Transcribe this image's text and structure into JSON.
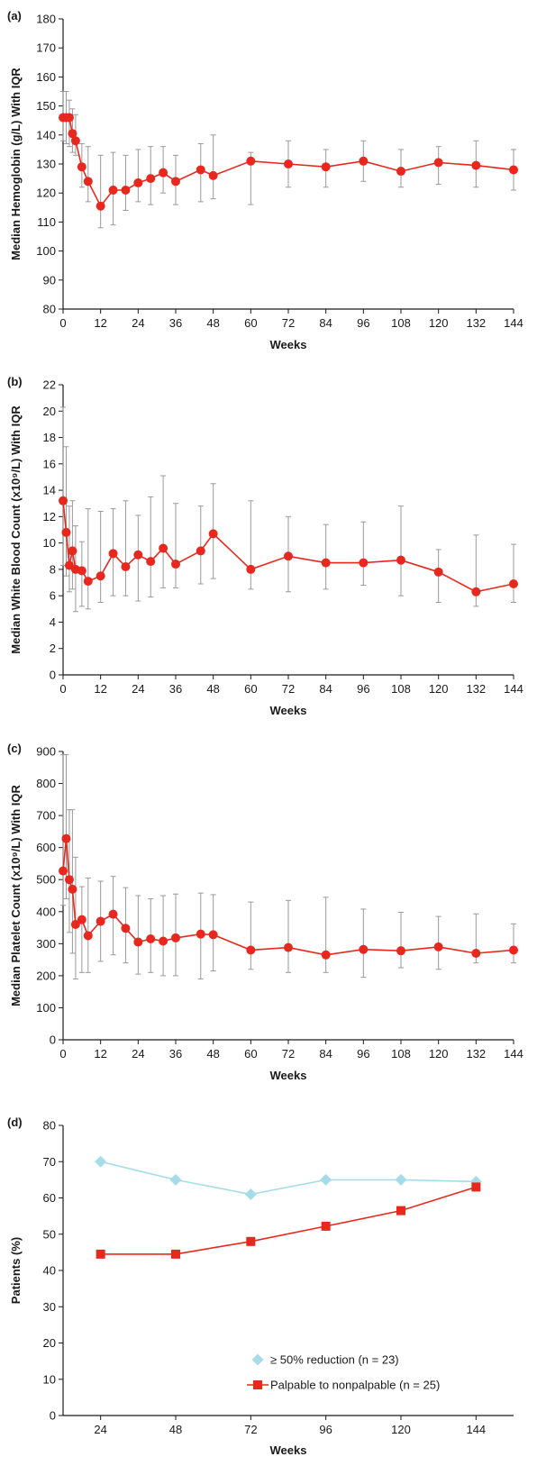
{
  "chart_data": [
    {
      "type": "line",
      "panel": "(a)",
      "title": "",
      "xlabel": "Weeks",
      "ylabel": "Median Hemoglobin (g/L) With IQR",
      "xlim": [
        0,
        144
      ],
      "ylim": [
        80,
        180
      ],
      "xticks": [
        0,
        12,
        24,
        36,
        48,
        60,
        72,
        84,
        96,
        108,
        120,
        132,
        144
      ],
      "yticks": [
        80,
        90,
        100,
        110,
        120,
        130,
        140,
        150,
        160,
        170,
        180
      ],
      "error_bars": "IQR",
      "grid": false,
      "color": "#e8281e",
      "errorbar_color": "#9a9a9a",
      "series": [
        {
          "x": [
            0,
            1,
            2,
            3,
            4,
            6,
            8,
            12,
            16,
            20,
            24,
            28,
            32,
            36,
            44,
            48,
            60,
            72,
            84,
            96,
            108,
            120,
            132,
            144
          ],
          "y": [
            146,
            146,
            146,
            140.5,
            138,
            129,
            124,
            115.5,
            121,
            121,
            123.5,
            125,
            127,
            124,
            128,
            126,
            131,
            130,
            129,
            131,
            127.5,
            130.5,
            129.5,
            128
          ],
          "lo": [
            138,
            137,
            136,
            134,
            133,
            122,
            117,
            108,
            109,
            114,
            117,
            116,
            120,
            116,
            117,
            118,
            116,
            122,
            122,
            124,
            122,
            123,
            122,
            121
          ],
          "hi": [
            155,
            155,
            152,
            149,
            147,
            137,
            136,
            133,
            134,
            133,
            135,
            136,
            136,
            133,
            137,
            140,
            134,
            138,
            135,
            138,
            135,
            136,
            138,
            135
          ]
        }
      ]
    },
    {
      "type": "line",
      "panel": "(b)",
      "title": "",
      "xlabel": "Weeks",
      "ylabel": "Median White Blood Count (x10⁹/L) With IQR",
      "xlim": [
        0,
        144
      ],
      "ylim": [
        0,
        22
      ],
      "xticks": [
        0,
        12,
        24,
        36,
        48,
        60,
        72,
        84,
        96,
        108,
        120,
        132,
        144
      ],
      "yticks": [
        0,
        2,
        4,
        6,
        8,
        10,
        12,
        14,
        16,
        18,
        20,
        22
      ],
      "error_bars": "IQR",
      "grid": false,
      "color": "#e8281e",
      "errorbar_color": "#9a9a9a",
      "series": [
        {
          "x": [
            0,
            1,
            2,
            3,
            4,
            6,
            8,
            12,
            16,
            20,
            24,
            28,
            32,
            36,
            44,
            48,
            60,
            72,
            84,
            96,
            108,
            120,
            132,
            144
          ],
          "y": [
            13.2,
            10.8,
            8.3,
            9.4,
            8.0,
            7.9,
            7.1,
            7.5,
            9.2,
            8.2,
            9.1,
            8.6,
            9.6,
            8.4,
            9.4,
            10.7,
            8.0,
            9.0,
            8.5,
            8.5,
            8.7,
            7.8,
            6.3,
            6.9
          ],
          "lo": [
            8.3,
            7.5,
            6.3,
            6.5,
            4.8,
            5.2,
            5.0,
            5.5,
            6.0,
            6.0,
            5.6,
            5.9,
            6.6,
            6.6,
            6.9,
            7.3,
            6.5,
            6.3,
            6.5,
            6.8,
            6.0,
            5.5,
            5.2,
            5.5
          ],
          "hi": [
            20.3,
            17.3,
            12.8,
            13.2,
            11.3,
            10.1,
            12.6,
            12.4,
            12.6,
            13.2,
            12.1,
            13.5,
            15.1,
            13.0,
            12.8,
            14.5,
            13.2,
            12.0,
            11.4,
            11.6,
            12.8,
            9.5,
            10.6,
            9.9
          ]
        }
      ]
    },
    {
      "type": "line",
      "panel": "(c)",
      "title": "",
      "xlabel": "Weeks",
      "ylabel": "Median Platelet Count (x10⁹/L) With IQR",
      "xlim": [
        0,
        144
      ],
      "ylim": [
        0,
        900
      ],
      "xticks": [
        0,
        12,
        24,
        36,
        48,
        60,
        72,
        84,
        96,
        108,
        120,
        132,
        144
      ],
      "yticks": [
        0,
        100,
        200,
        300,
        400,
        500,
        600,
        700,
        800,
        900
      ],
      "error_bars": "IQR",
      "grid": false,
      "color": "#e8281e",
      "errorbar_color": "#9a9a9a",
      "series": [
        {
          "x": [
            0,
            1,
            2,
            3,
            4,
            6,
            8,
            12,
            16,
            20,
            24,
            28,
            32,
            36,
            44,
            48,
            60,
            72,
            84,
            96,
            108,
            120,
            132,
            144
          ],
          "y": [
            527,
            628,
            500,
            470,
            360,
            375,
            325,
            370,
            392,
            348,
            305,
            315,
            308,
            318,
            330,
            328,
            280,
            288,
            265,
            282,
            278,
            290,
            270,
            280
          ],
          "lo": [
            420,
            440,
            335,
            270,
            190,
            210,
            210,
            245,
            265,
            240,
            205,
            210,
            200,
            200,
            190,
            215,
            220,
            210,
            210,
            195,
            225,
            220,
            240,
            240
          ],
          "hi": [
            890,
            890,
            718,
            718,
            570,
            478,
            505,
            495,
            510,
            475,
            450,
            440,
            450,
            455,
            458,
            453,
            430,
            435,
            445,
            408,
            398,
            385,
            393,
            362
          ]
        }
      ]
    },
    {
      "type": "line",
      "panel": "(d)",
      "title": "",
      "xlabel": "Weeks",
      "ylabel": "Patients (%)",
      "xlim": [
        12,
        156
      ],
      "ylim": [
        0,
        80
      ],
      "xticks": [
        24,
        48,
        72,
        96,
        120,
        144
      ],
      "yticks": [
        0,
        10,
        20,
        30,
        40,
        50,
        60,
        70,
        80
      ],
      "grid": false,
      "legend": "bottom-right",
      "series": [
        {
          "name": "≥ 50% reduction (n = 23)",
          "marker": "diamond",
          "color": "#a6dcea",
          "x": [
            24,
            48,
            72,
            96,
            120,
            144
          ],
          "y": [
            70,
            65,
            61,
            65,
            65,
            64.5
          ]
        },
        {
          "name": "Palpable to nonpalpable (n = 25)",
          "marker": "square",
          "color": "#e8281e",
          "x": [
            24,
            48,
            72,
            96,
            120,
            144
          ],
          "y": [
            44.5,
            44.5,
            48,
            52.2,
            56.5,
            63
          ]
        }
      ]
    }
  ]
}
